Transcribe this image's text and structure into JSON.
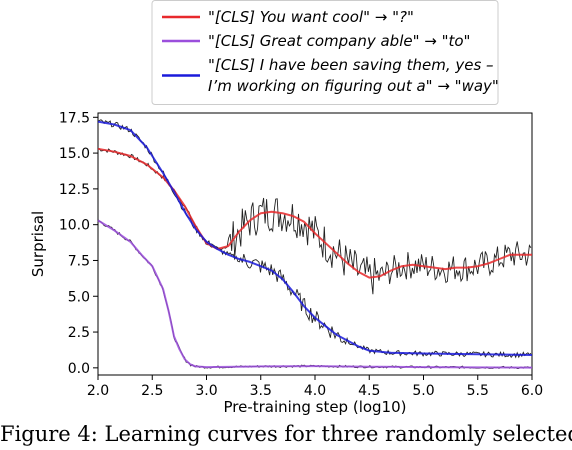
{
  "chart_data": {
    "type": "line",
    "xlabel": "Pre-training step (log10)",
    "ylabel": "Surprisal",
    "xlim": [
      2.0,
      6.0
    ],
    "ylim": [
      -0.5,
      17.8
    ],
    "x_ticks": [
      "2.0",
      "2.5",
      "3.0",
      "3.5",
      "4.0",
      "4.5",
      "5.0",
      "5.5",
      "6.0"
    ],
    "y_ticks": [
      "0.0",
      "2.5",
      "5.0",
      "7.5",
      "10.0",
      "12.5",
      "15.0",
      "17.5"
    ],
    "legend_placement": "top-center, above plot",
    "series": [
      {
        "name_lines": [
          "\"[CLS] You want cool\" → \"?\""
        ],
        "color": "#e8292c",
        "x": [
          2.0,
          2.15,
          2.3,
          2.45,
          2.6,
          2.7,
          2.8,
          2.9,
          3.0,
          3.1,
          3.2,
          3.3,
          3.4,
          3.5,
          3.6,
          3.7,
          3.8,
          3.9,
          4.0,
          4.1,
          4.2,
          4.3,
          4.4,
          4.5,
          4.6,
          4.7,
          4.8,
          4.9,
          5.0,
          5.1,
          5.2,
          5.3,
          5.4,
          5.5,
          5.6,
          5.7,
          5.8,
          5.9,
          6.0
        ],
        "values": [
          15.3,
          15.1,
          14.8,
          14.2,
          13.3,
          12.4,
          11.3,
          9.9,
          8.7,
          8.3,
          8.5,
          9.5,
          10.3,
          10.8,
          10.9,
          10.8,
          10.6,
          10.2,
          9.4,
          8.7,
          8.0,
          7.3,
          6.7,
          6.3,
          6.4,
          6.8,
          7.1,
          7.2,
          7.1,
          7.0,
          6.9,
          7.0,
          7.0,
          7.1,
          7.3,
          7.6,
          7.9,
          7.9,
          7.9
        ]
      },
      {
        "name_lines": [
          "\"[CLS] Great company able\" → \"to\""
        ],
        "color": "#9b4fdc",
        "x": [
          2.0,
          2.15,
          2.3,
          2.4,
          2.5,
          2.6,
          2.65,
          2.7,
          2.75,
          2.8,
          2.85,
          2.9,
          3.0,
          3.5,
          4.0,
          4.5,
          5.0,
          5.5,
          6.0
        ],
        "values": [
          10.3,
          9.6,
          8.8,
          7.9,
          7.1,
          5.5,
          4.0,
          2.2,
          1.3,
          0.6,
          0.25,
          0.1,
          0.05,
          0.1,
          0.12,
          0.08,
          0.05,
          0.03,
          0.02
        ]
      },
      {
        "name_lines": [
          "\"[CLS] I have been saving them, yes –",
          "I’m working on figuring out a\" → \"way\""
        ],
        "color": "#1a1adb",
        "x": [
          2.0,
          2.15,
          2.3,
          2.45,
          2.6,
          2.7,
          2.8,
          2.9,
          3.0,
          3.1,
          3.2,
          3.3,
          3.4,
          3.5,
          3.6,
          3.7,
          3.8,
          3.9,
          4.0,
          4.1,
          4.2,
          4.3,
          4.4,
          4.5,
          4.7,
          5.0,
          5.5,
          6.0
        ],
        "values": [
          17.2,
          17.0,
          16.6,
          15.4,
          13.6,
          12.3,
          10.9,
          9.7,
          8.8,
          8.3,
          7.9,
          7.6,
          7.4,
          7.1,
          6.8,
          6.2,
          5.3,
          4.3,
          3.5,
          2.9,
          2.3,
          1.9,
          1.5,
          1.2,
          1.05,
          1.0,
          0.95,
          0.9
        ]
      }
    ]
  },
  "caption": "Figure 4: Learning curves for three randomly selected"
}
